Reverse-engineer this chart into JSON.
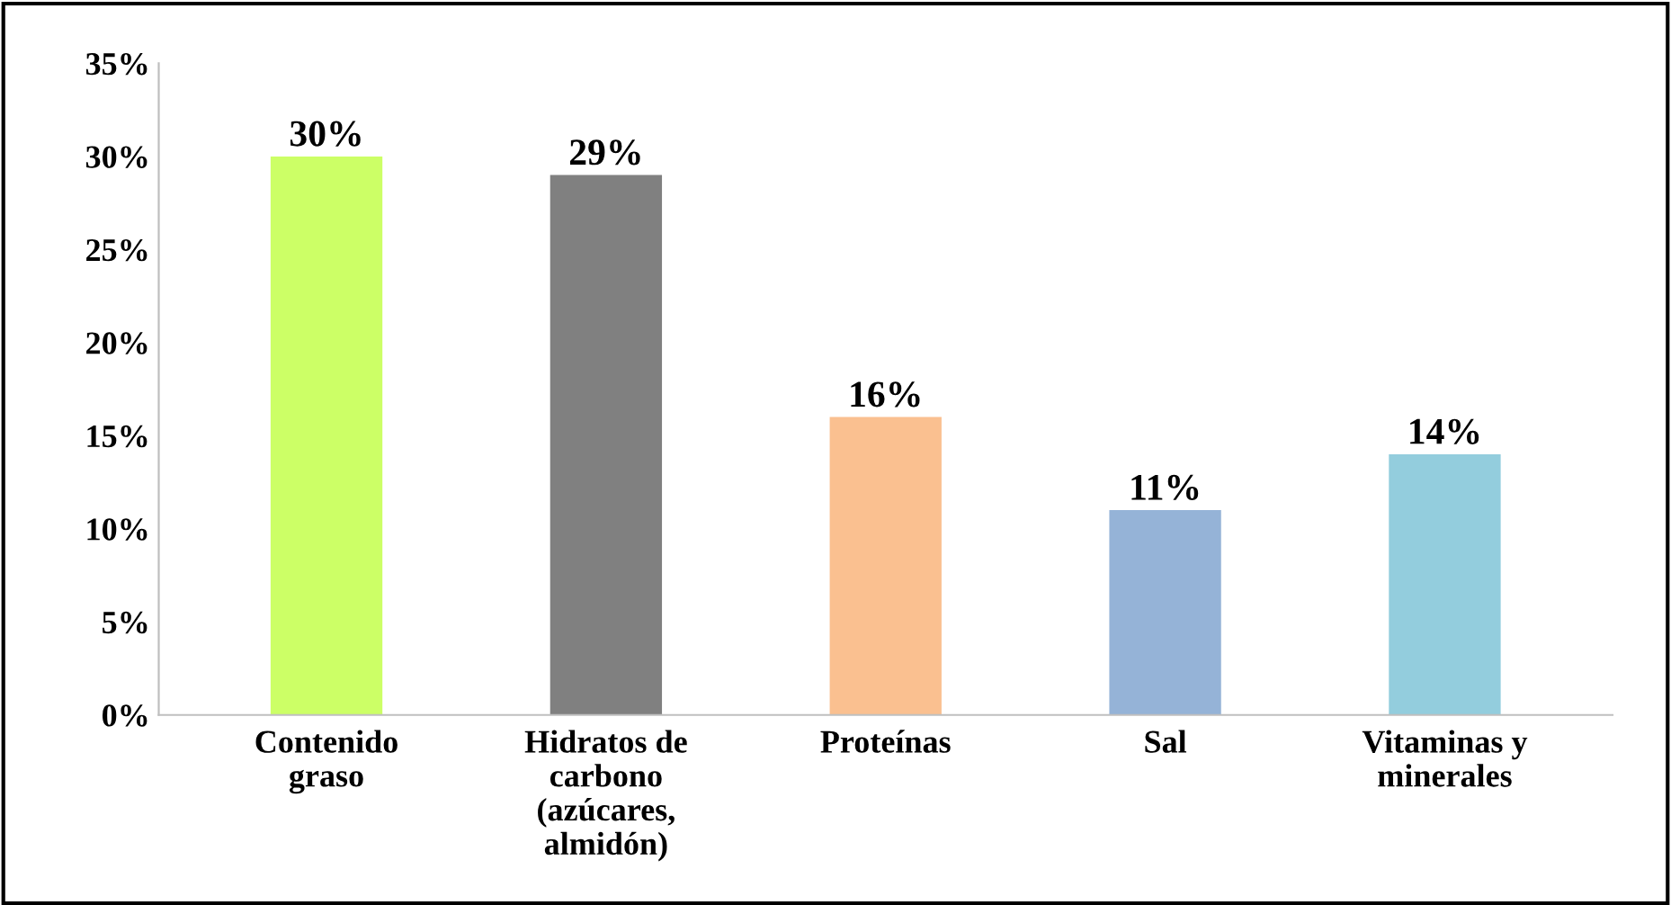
{
  "chart_data": {
    "type": "bar",
    "categories": [
      "Contenido\ngraso",
      "Hidratos de\ncarbono\n(azúcares,\nalmidón)",
      "Proteínas",
      "Sal",
      "Vitaminas y\nminerales"
    ],
    "values": [
      30,
      29,
      16,
      11,
      14
    ],
    "colors": [
      "#ccff66",
      "#808080",
      "#fac090",
      "#95b3d7",
      "#93cddd"
    ],
    "value_labels": [
      "30%",
      "29%",
      "16%",
      "11%",
      "14%"
    ],
    "ylim": [
      0,
      35
    ],
    "yticks": [
      {
        "value": 0,
        "label": "0%"
      },
      {
        "value": 5,
        "label": "5%"
      },
      {
        "value": 10,
        "label": "10%"
      },
      {
        "value": 15,
        "label": "15%"
      },
      {
        "value": 20,
        "label": "20%"
      },
      {
        "value": 25,
        "label": "25%"
      },
      {
        "value": 30,
        "label": "30%"
      },
      {
        "value": 35,
        "label": "35%"
      }
    ],
    "grid": false
  }
}
